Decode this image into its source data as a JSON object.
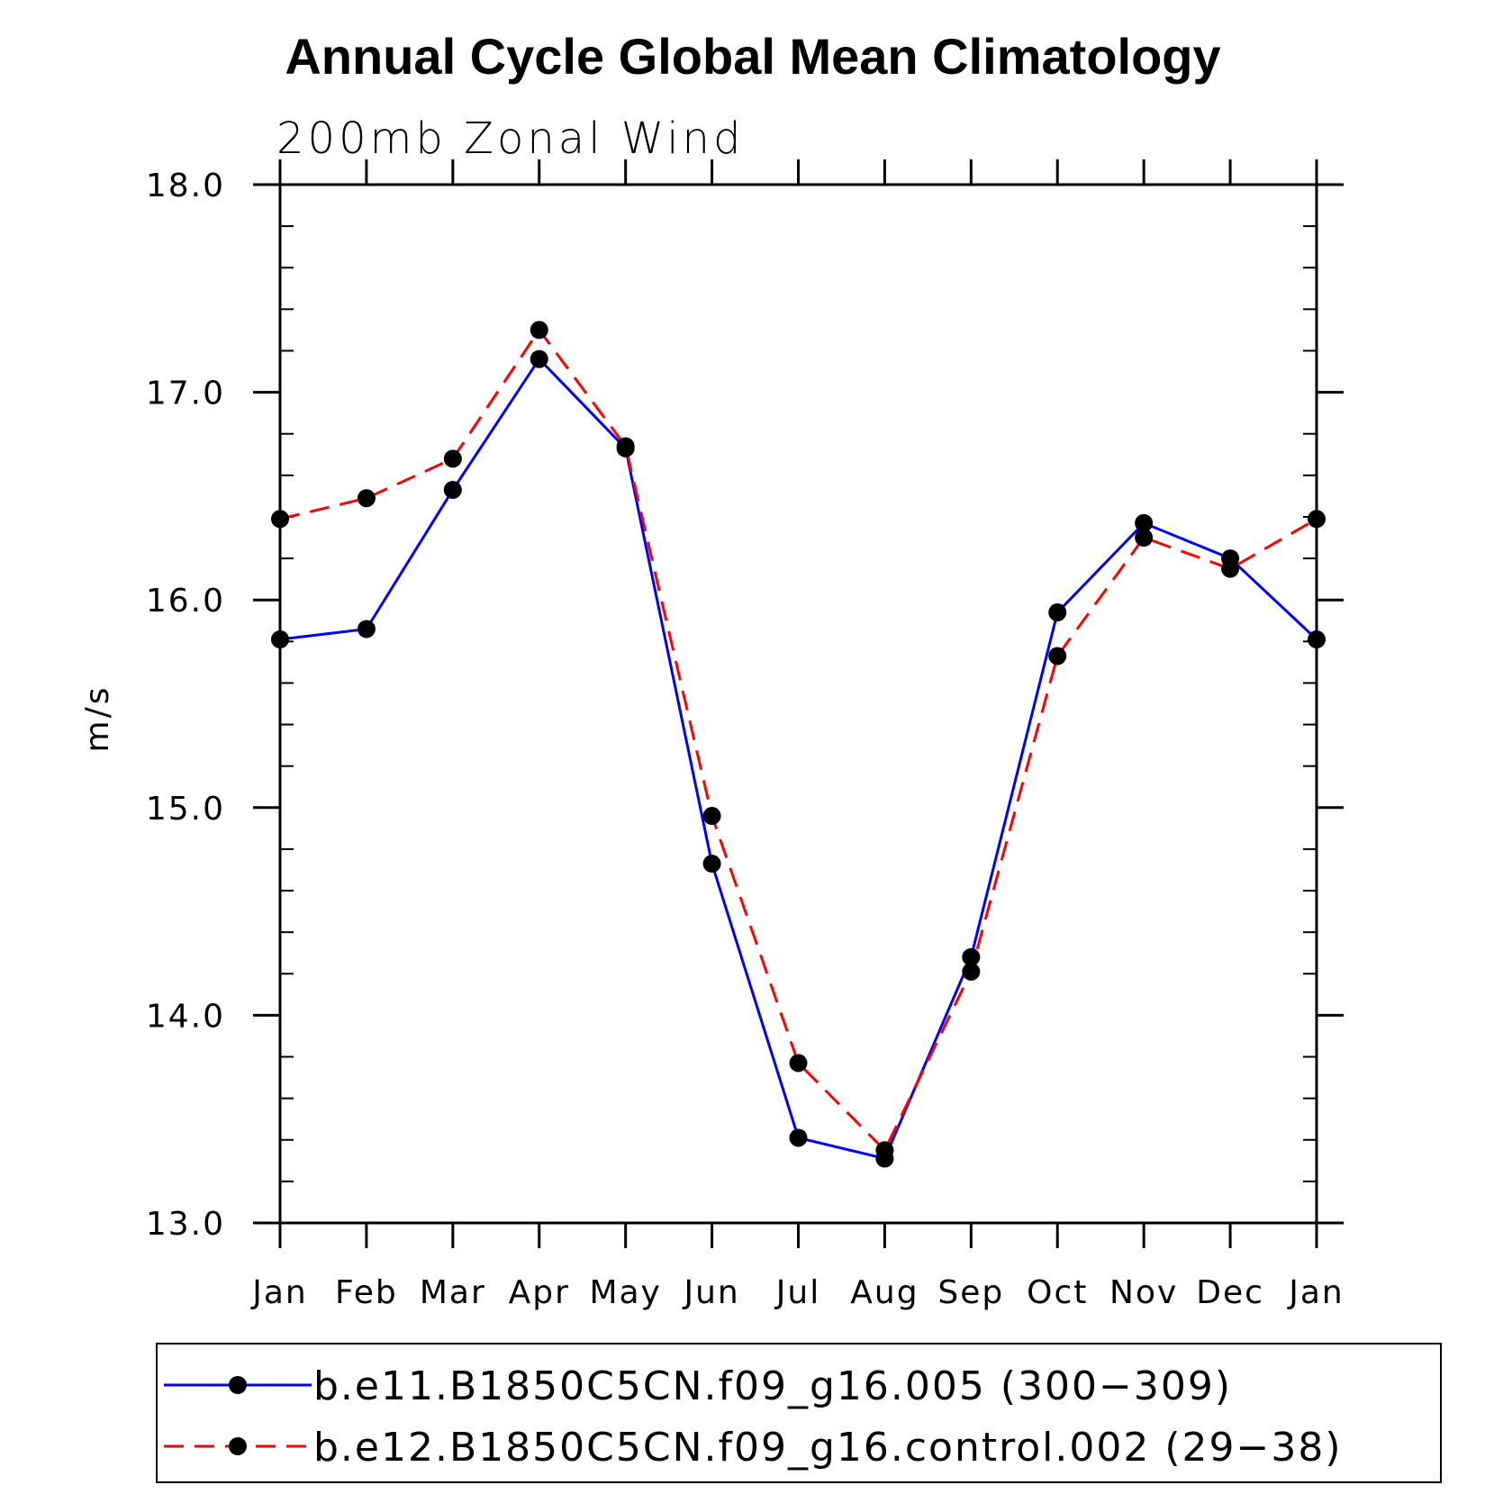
{
  "chart_data": {
    "type": "line",
    "title": "Annual Cycle Global Mean Climatology",
    "subtitle": "200mb Zonal Wind",
    "xlabel": "",
    "ylabel": "m/s",
    "categories": [
      "Jan",
      "Feb",
      "Mar",
      "Apr",
      "May",
      "Jun",
      "Jul",
      "Aug",
      "Sep",
      "Oct",
      "Nov",
      "Dec",
      "Jan"
    ],
    "ylim": [
      13.0,
      18.0
    ],
    "yticks": [
      "13.0",
      "14.0",
      "15.0",
      "16.0",
      "17.0",
      "18.0"
    ],
    "grid": false,
    "legend_position": "bottom",
    "series": [
      {
        "name": "b.e11.B1850C5CN.f09_g16.005 (300−309)",
        "color": "#0000ff",
        "line_style": "solid",
        "marker": "filled-circle",
        "values": [
          15.81,
          15.86,
          16.53,
          17.16,
          16.73,
          14.73,
          13.41,
          13.31,
          14.28,
          15.94,
          16.37,
          16.2,
          15.81
        ]
      },
      {
        "name": "b.e12.B1850C5CN.f09_g16.control.002 (29−38)",
        "color": "#ff0000",
        "line_style": "dashed",
        "marker": "filled-circle",
        "values": [
          16.39,
          16.49,
          16.68,
          17.3,
          16.74,
          14.96,
          13.77,
          13.35,
          14.21,
          15.73,
          16.3,
          16.15,
          16.39
        ]
      }
    ]
  }
}
